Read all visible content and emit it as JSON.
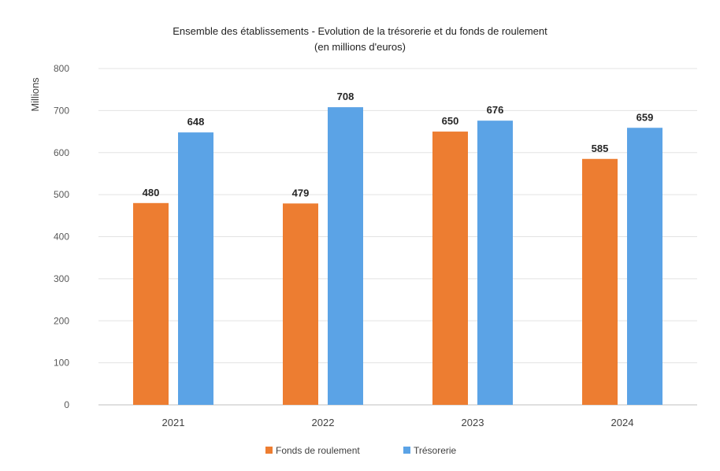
{
  "chart_data": {
    "type": "bar",
    "title": "Ensemble des établissements - Evolution de la trésorerie et du fonds de roulement",
    "subtitle": "(en millions d'euros)",
    "ylabel": "Millions",
    "xlabel": "",
    "categories": [
      "2021",
      "2022",
      "2023",
      "2024"
    ],
    "ylim": [
      0,
      800
    ],
    "yticks": [
      0,
      100,
      200,
      300,
      400,
      500,
      600,
      700,
      800
    ],
    "grid": true,
    "legend_position": "bottom",
    "series": [
      {
        "name": "Fonds de roulement",
        "color": "#ED7D31",
        "values": [
          480,
          479,
          650,
          585
        ]
      },
      {
        "name": "Trésorerie",
        "color": "#5BA3E6",
        "values": [
          648,
          708,
          676,
          659
        ]
      }
    ]
  }
}
